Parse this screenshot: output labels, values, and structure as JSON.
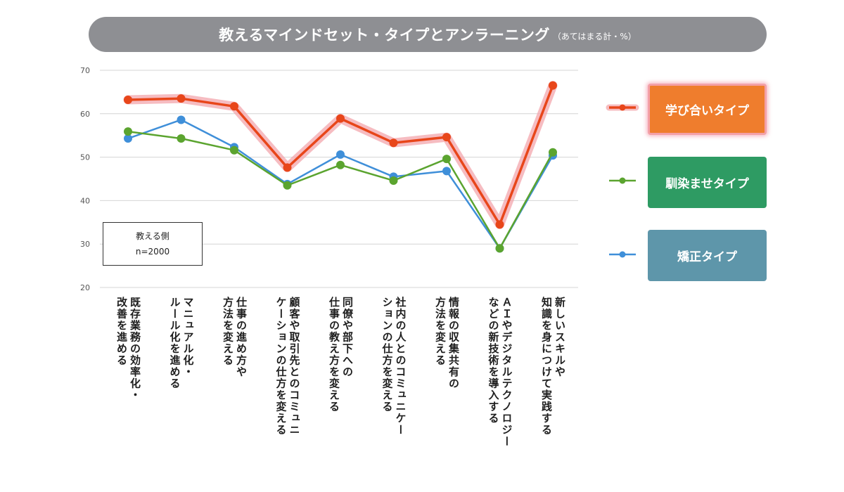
{
  "title": {
    "main": "教えるマインドセット・タイプとアンラーニング",
    "sub": "（あてはまる計・%）"
  },
  "note": {
    "line1": "教える側",
    "line2": "n=2000"
  },
  "colors": {
    "manabi": "#e8461a",
    "najimase": "#5ba42f",
    "kyosei": "#3f8fd9",
    "grid": "#d4d4d4",
    "title_bg": "#8e8f93"
  },
  "chart_data": {
    "type": "line",
    "ylim": [
      20,
      70
    ],
    "yticks": [
      "20",
      "30",
      "40",
      "50",
      "60",
      "70"
    ],
    "categories": [
      [
        "既存業務の効率化・",
        "改善を進める"
      ],
      [
        "マニュアル化・",
        "ルール化を進める"
      ],
      [
        "仕事の進め方や",
        "方法を変える"
      ],
      [
        "顧客や取引先とのコミュニ",
        "ケーションの仕方を変える"
      ],
      [
        "同僚や部下への",
        "仕事の教え方を変える"
      ],
      [
        "社内の人とのコミュニケー",
        "ションの仕方を変える"
      ],
      [
        "情報の収集共有の",
        "方法を変える"
      ],
      [
        "ＡＩやデジタルテクノロジー",
        "などの新技術を導入する"
      ],
      [
        "新しいスキルや",
        "知識を身につけて実践する"
      ]
    ],
    "series": [
      {
        "name": "学び合いタイプ",
        "values": [
          63.2,
          63.5,
          61.7,
          47.6,
          58.9,
          53.3,
          54.6,
          34.5,
          66.5
        ]
      },
      {
        "name": "馴染ませタイプ",
        "values": [
          55.9,
          54.3,
          51.6,
          43.5,
          48.2,
          44.6,
          49.6,
          29.0,
          51.1
        ]
      },
      {
        "name": "矯正タイプ",
        "values": [
          54.3,
          58.6,
          52.3,
          43.8,
          50.6,
          45.5,
          46.8,
          29.0,
          50.4
        ]
      }
    ]
  }
}
